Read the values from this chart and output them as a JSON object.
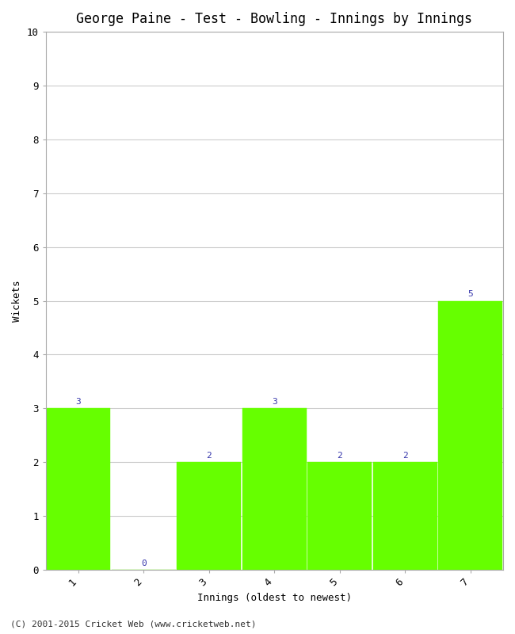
{
  "title": "George Paine - Test - Bowling - Innings by Innings",
  "xlabel": "Innings (oldest to newest)",
  "ylabel": "Wickets",
  "categories": [
    "1",
    "2",
    "3",
    "4",
    "5",
    "6",
    "7"
  ],
  "values": [
    3,
    0,
    2,
    3,
    2,
    2,
    5
  ],
  "bar_color": "#66ff00",
  "bar_edge_color": "#66ff00",
  "ylim": [
    0,
    10
  ],
  "yticks": [
    0,
    1,
    2,
    3,
    4,
    5,
    6,
    7,
    8,
    9,
    10
  ],
  "title_fontsize": 12,
  "axis_label_fontsize": 9,
  "tick_fontsize": 9,
  "annotation_color": "#3333aa",
  "annotation_fontsize": 8,
  "background_color": "#ffffff",
  "grid_color": "#cccccc",
  "footer": "(C) 2001-2015 Cricket Web (www.cricketweb.net)"
}
